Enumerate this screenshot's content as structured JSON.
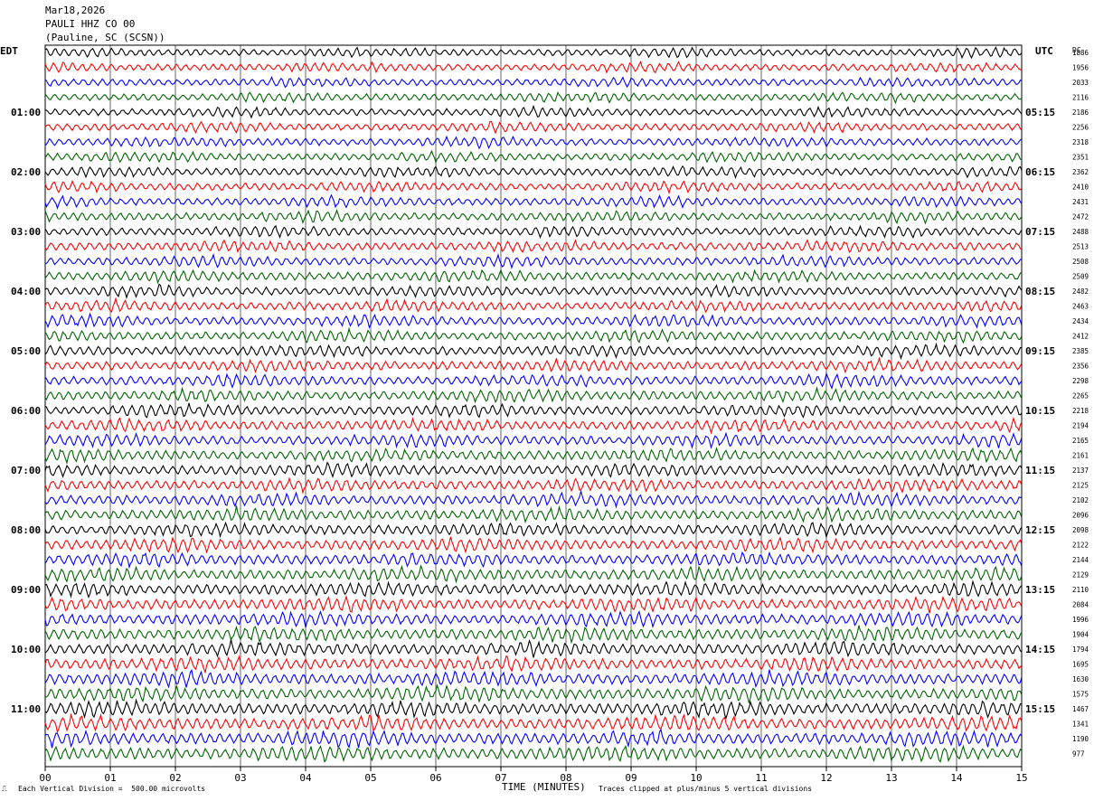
{
  "header": {
    "date": "Mar18,2026",
    "station": "PAULI HHZ CO 00",
    "location": "(Pauline, SC (SCSN))"
  },
  "left_tz": "EDT",
  "right_tz": "UTC",
  "dc_label": "DC",
  "footer": {
    "left_mark": "⎍",
    "scale_note": "Each Vertical Division =  500.00 microvolts",
    "clip_note": "Traces clipped at plus/minus 5 vertical divisions"
  },
  "colors": [
    "#000000",
    "#ff0000",
    "#0000ff",
    "#006400"
  ],
  "chart_data": {
    "type": "line",
    "title": "",
    "xlabel": "TIME (MINUTES)",
    "ylabel": "",
    "xlim": [
      0,
      15
    ],
    "x_ticks": [
      "00",
      "01",
      "02",
      "03",
      "04",
      "05",
      "06",
      "07",
      "08",
      "09",
      "10",
      "11",
      "12",
      "13",
      "14",
      "15"
    ],
    "left_hour_labels": [
      "01:00",
      "02:00",
      "03:00",
      "04:00",
      "05:00",
      "06:00",
      "07:00",
      "08:00",
      "09:00",
      "10:00",
      "11:00"
    ],
    "right_hour_labels": [
      "05:15",
      "06:15",
      "07:15",
      "08:15",
      "09:15",
      "10:15",
      "11:15",
      "12:15",
      "13:15",
      "14:15",
      "15:15"
    ],
    "dc_offsets": [
      1886,
      1956,
      2033,
      2116,
      2186,
      2256,
      2318,
      2351,
      2362,
      2410,
      2431,
      2472,
      2488,
      2513,
      2508,
      2509,
      2482,
      2463,
      2434,
      2412,
      2385,
      2356,
      2298,
      2265,
      2218,
      2194,
      2165,
      2161,
      2137,
      2125,
      2102,
      2096,
      2098,
      2122,
      2144,
      2129,
      2110,
      2084,
      1996,
      1904,
      1794,
      1695,
      1630,
      1575,
      1467,
      1341,
      1190,
      977
    ],
    "series_count": 48,
    "trace_minutes": 15,
    "grid": true
  }
}
